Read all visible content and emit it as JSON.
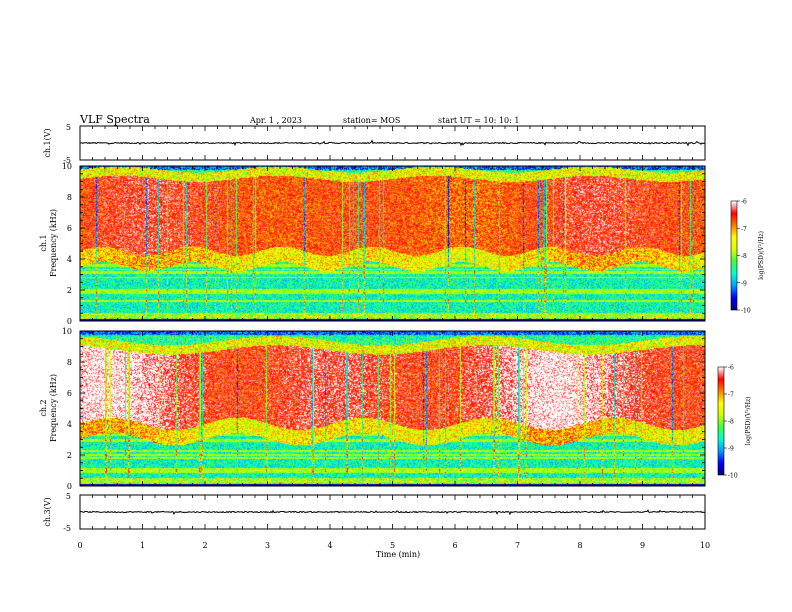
{
  "header": {
    "title": "VLF Spectra",
    "date": "Apr. 1 , 2023",
    "station": "station= MOS",
    "start_time": "start UT = 10: 10: 1"
  },
  "chart_data": {
    "type": "heatmap",
    "x_axis": {
      "label": "Time (min)",
      "range": [
        0,
        10
      ],
      "ticks": [
        "0",
        "1",
        "2",
        "3",
        "4",
        "5",
        "6",
        "7",
        "8",
        "9",
        "10"
      ]
    },
    "panels": [
      {
        "id": "ch1_waveform",
        "type": "line",
        "ylabel": "ch.1(V)",
        "ylim": [
          -5,
          5
        ],
        "y_ticks": [
          "5",
          "-5"
        ],
        "baseline": 0
      },
      {
        "id": "ch1_spectrogram",
        "type": "heatmap",
        "ylabel_line1": "ch.1",
        "ylabel_line2": "Frequency (kHz)",
        "ylim": [
          0,
          10
        ],
        "y_ticks": [
          "0",
          "2",
          "4",
          "6",
          "8",
          "10"
        ],
        "intense_band_khz": [
          4.5,
          9.2
        ],
        "colorbar": {
          "label": "log(PSD)(V²/Hz)",
          "range": [
            -10,
            -6
          ],
          "ticks": [
            "-6",
            "-7",
            "-8",
            "-9",
            "-10"
          ]
        }
      },
      {
        "id": "ch2_spectrogram",
        "type": "heatmap",
        "ylabel_line1": "ch.2",
        "ylabel_line2": "Frequency (kHz)",
        "ylim": [
          0,
          10
        ],
        "y_ticks": [
          "0",
          "2",
          "4",
          "6",
          "8",
          "10"
        ],
        "intense_band_khz": [
          4.0,
          8.8
        ],
        "colorbar": {
          "label": "log(PSD)(V²/Hz)",
          "range": [
            -10,
            -6
          ],
          "ticks": [
            "-6",
            "-7",
            "-8",
            "-9",
            "-10"
          ]
        }
      },
      {
        "id": "ch3_waveform",
        "type": "line",
        "ylabel": "ch.3(V)",
        "ylim": [
          -5,
          5
        ],
        "y_ticks": [
          "5",
          "-5"
        ],
        "baseline": 0
      }
    ],
    "colormap": [
      "#00007f",
      "#0000ff",
      "#00a0ff",
      "#00ffd0",
      "#40ff40",
      "#d0ff00",
      "#ffff00",
      "#ff8000",
      "#ff0000",
      "#ffffff"
    ]
  }
}
